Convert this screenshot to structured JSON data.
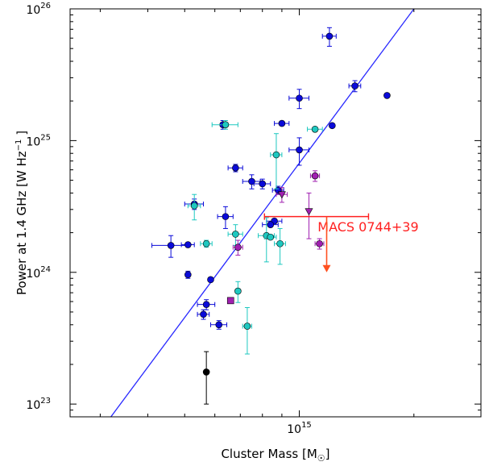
{
  "chart_data": {
    "type": "scatter",
    "xlabel_main": "Cluster Mass [M",
    "xlabel_sub": "☉",
    "xlabel_end": "]",
    "ylabel_main": "Power at 1.4 GHz [W Hz",
    "ylabel_sup": "−1",
    "ylabel_end": " ]",
    "xscale": "log",
    "yscale": "log",
    "xlim": [
      250000000000000.0,
      3000000000000000.0
    ],
    "ylim": [
      8e+22,
      1e+26
    ],
    "x_tick_labels": [
      {
        "value": 1000000000000000.0,
        "base": "10",
        "exp": "15"
      }
    ],
    "y_tick_labels": [
      {
        "value": 1e+23,
        "base": "10",
        "exp": "23"
      },
      {
        "value": 1e+24,
        "base": "10",
        "exp": "24"
      },
      {
        "value": 1e+25,
        "base": "10",
        "exp": "25"
      },
      {
        "value": 1e+26,
        "base": "10",
        "exp": "26"
      }
    ],
    "grid": false,
    "colors": {
      "blue": "#0a0ad8",
      "cyan": "#1ec8c0",
      "magenta": "#a020b0",
      "black": "#000000",
      "fit": "#2828ff",
      "annotation": "#ff2020",
      "arrow": "#ff5020"
    },
    "fit_line": {
      "x": [
        320000000000000.0,
        2000000000000000.0
      ],
      "y": [
        8e+22,
        1e+26
      ]
    },
    "points": [
      {
        "x": 1200000000000000.0,
        "y": 6.2e+25,
        "xerr": 50000000000000.0,
        "yerr": [
          1e+25,
          1e+25
        ],
        "marker": "circle",
        "color": "blue"
      },
      {
        "x": 1400000000000000.0,
        "y": 2.6e+25,
        "xerr": 50000000000000.0,
        "yerr": [
          2.5e+24,
          2.5e+24
        ],
        "marker": "circle",
        "color": "blue"
      },
      {
        "x": 1700000000000000.0,
        "y": 2.2e+25,
        "xerr": 0,
        "yerr": [
          0,
          0
        ],
        "marker": "circle",
        "color": "blue"
      },
      {
        "x": 1000000000000000.0,
        "y": 2.1e+25,
        "xerr": 60000000000000.0,
        "yerr": [
          3.5e+24,
          3.5e+24
        ],
        "marker": "circle",
        "color": "blue"
      },
      {
        "x": 630000000000000.0,
        "y": 1.32e+25,
        "xerr": 6000000000000.0,
        "yerr": [
          1e+24,
          1e+24
        ],
        "marker": "circle",
        "color": "blue"
      },
      {
        "x": 900000000000000.0,
        "y": 1.35e+25,
        "xerr": 40000000000000.0,
        "yerr": [
          0,
          0
        ],
        "marker": "circle",
        "color": "blue"
      },
      {
        "x": 1220000000000000.0,
        "y": 1.3e+25,
        "xerr": 0,
        "yerr": [
          0,
          0
        ],
        "marker": "circle",
        "color": "blue"
      },
      {
        "x": 1000000000000000.0,
        "y": 8.5e+24,
        "xerr": 60000000000000.0,
        "yerr": [
          2e+24,
          2e+24
        ],
        "marker": "circle",
        "color": "blue"
      },
      {
        "x": 680000000000000.0,
        "y": 6.2e+24,
        "xerr": 30000000000000.0,
        "yerr": [
          4e+23,
          4e+23
        ],
        "marker": "circle",
        "color": "blue"
      },
      {
        "x": 750000000000000.0,
        "y": 4.9e+24,
        "xerr": 40000000000000.0,
        "yerr": [
          6e+23,
          6e+23
        ],
        "marker": "circle",
        "color": "blue"
      },
      {
        "x": 800000000000000.0,
        "y": 4.7e+24,
        "xerr": 40000000000000.0,
        "yerr": [
          4e+23,
          4e+23
        ],
        "marker": "circle",
        "color": "blue"
      },
      {
        "x": 530000000000000.0,
        "y": 3.3e+24,
        "xerr": 30000000000000.0,
        "yerr": [
          3e+23,
          3e+23
        ],
        "marker": "circle",
        "color": "blue"
      },
      {
        "x": 640000000000000.0,
        "y": 2.65e+24,
        "xerr": 30000000000000.0,
        "yerr": [
          5e+23,
          5e+23
        ],
        "marker": "circle",
        "color": "blue"
      },
      {
        "x": 860000000000000.0,
        "y": 2.45e+24,
        "xerr": 40000000000000.0,
        "yerr": [
          0,
          0
        ],
        "marker": "circle",
        "color": "blue"
      },
      {
        "x": 840000000000000.0,
        "y": 2.3e+24,
        "xerr": 40000000000000.0,
        "yerr": [
          0,
          0
        ],
        "marker": "circle",
        "color": "blue"
      },
      {
        "x": 880000000000000.0,
        "y": 4.2e+24,
        "xerr": 30000000000000.0,
        "yerr": [
          3e+23,
          3e+23
        ],
        "marker": "circle",
        "color": "blue"
      },
      {
        "x": 460000000000000.0,
        "y": 1.6e+24,
        "xerr": 50000000000000.0,
        "yerr": [
          3e+23,
          3e+23
        ],
        "marker": "circle",
        "color": "blue"
      },
      {
        "x": 510000000000000.0,
        "y": 1.62e+24,
        "xerr": 20000000000000.0,
        "yerr": [
          0,
          0
        ],
        "marker": "circle",
        "color": "blue"
      },
      {
        "x": 510000000000000.0,
        "y": 9.6e+23,
        "xerr": 0,
        "yerr": [
          6e+22,
          6e+22
        ],
        "marker": "circle",
        "color": "blue"
      },
      {
        "x": 585000000000000.0,
        "y": 8.8e+23,
        "xerr": 0,
        "yerr": [
          0,
          0
        ],
        "marker": "circle",
        "color": "blue"
      },
      {
        "x": 570000000000000.0,
        "y": 5.7e+23,
        "xerr": 30000000000000.0,
        "yerr": [
          5e+22,
          5e+22
        ],
        "marker": "circle",
        "color": "blue"
      },
      {
        "x": 560000000000000.0,
        "y": 4.8e+23,
        "xerr": 20000000000000.0,
        "yerr": [
          4e+22,
          4e+22
        ],
        "marker": "circle",
        "color": "blue"
      },
      {
        "x": 615000000000000.0,
        "y": 4e+23,
        "xerr": 30000000000000.0,
        "yerr": [
          3e+22,
          3e+22
        ],
        "marker": "circle",
        "color": "blue"
      },
      {
        "x": 640000000000000.0,
        "y": 1.32e+25,
        "xerr": 50000000000000.0,
        "yerr": [
          1e+24,
          1e+24
        ],
        "marker": "circle",
        "color": "cyan"
      },
      {
        "x": 1100000000000000.0,
        "y": 1.22e+25,
        "xerr": 50000000000000.0,
        "yerr": [
          0,
          0
        ],
        "marker": "circle",
        "color": "cyan"
      },
      {
        "x": 870000000000000.0,
        "y": 7.8e+24,
        "xerr": 30000000000000.0,
        "yerr": [
          3.5e+24,
          3.5e+24
        ],
        "marker": "circle",
        "color": "cyan"
      },
      {
        "x": 530000000000000.0,
        "y": 3.2e+24,
        "xerr": 20000000000000.0,
        "yerr": [
          7e+23,
          7e+23
        ],
        "marker": "circle",
        "color": "cyan"
      },
      {
        "x": 570000000000000.0,
        "y": 1.65e+24,
        "xerr": 20000000000000.0,
        "yerr": [
          1e+23,
          1e+23
        ],
        "marker": "circle",
        "color": "cyan"
      },
      {
        "x": 680000000000000.0,
        "y": 1.95e+24,
        "xerr": 30000000000000.0,
        "yerr": [
          3.5e+23,
          3.5e+23
        ],
        "marker": "circle",
        "color": "cyan"
      },
      {
        "x": 820000000000000.0,
        "y": 1.9e+24,
        "xerr": 40000000000000.0,
        "yerr": [
          7e+23,
          7e+23
        ],
        "marker": "circle",
        "color": "cyan"
      },
      {
        "x": 840000000000000.0,
        "y": 1.85e+24,
        "xerr": 30000000000000.0,
        "yerr": [
          0,
          0
        ],
        "marker": "circle",
        "color": "cyan"
      },
      {
        "x": 890000000000000.0,
        "y": 1.65e+24,
        "xerr": 30000000000000.0,
        "yerr": [
          5e+23,
          5e+23
        ],
        "marker": "circle",
        "color": "cyan"
      },
      {
        "x": 690000000000000.0,
        "y": 7.2e+23,
        "xerr": 0,
        "yerr": [
          1.3e+23,
          1.3e+23
        ],
        "marker": "circle",
        "color": "cyan"
      },
      {
        "x": 730000000000000.0,
        "y": 3.9e+23,
        "xerr": 20000000000000.0,
        "yerr": [
          1.5e+23,
          1.5e+23
        ],
        "marker": "circle",
        "color": "cyan"
      },
      {
        "x": 1100000000000000.0,
        "y": 5.4e+24,
        "xerr": 30000000000000.0,
        "yerr": [
          5e+23,
          5e+23
        ],
        "marker": "circle",
        "color": "magenta"
      },
      {
        "x": 900000000000000.0,
        "y": 3.9e+24,
        "xerr": 30000000000000.0,
        "yerr": [
          5e+23,
          5e+23
        ],
        "marker": "triangle",
        "color": "magenta"
      },
      {
        "x": 1060000000000000.0,
        "y": 2.9e+24,
        "xerr": 0,
        "yerr": [
          1.1e+24,
          1.1e+24
        ],
        "marker": "triangle",
        "color": "magenta"
      },
      {
        "x": 690000000000000.0,
        "y": 1.55e+24,
        "xerr": 20000000000000.0,
        "yerr": [
          2e+23,
          2e+23
        ],
        "marker": "circle",
        "color": "magenta"
      },
      {
        "x": 1130000000000000.0,
        "y": 1.65e+24,
        "xerr": 30000000000000.0,
        "yerr": [
          1.5e+23,
          1.5e+23
        ],
        "marker": "circle",
        "color": "magenta"
      },
      {
        "x": 660000000000000.0,
        "y": 6.1e+23,
        "xerr": 0,
        "yerr": [
          0,
          0
        ],
        "marker": "square",
        "color": "magenta"
      },
      {
        "x": 570000000000000.0,
        "y": 1.75e+23,
        "xerr": 0,
        "yerr": [
          7.5e+22,
          7.5e+22
        ],
        "marker": "circle",
        "color": "black"
      }
    ],
    "upper_limit": {
      "label": "MACS 0744+39",
      "x": 1180000000000000.0,
      "y": 2.65e+24,
      "x_lo": 810000000000000.0,
      "x_hi": 1520000000000000.0,
      "y_arrow_end": 1e+24
    }
  }
}
